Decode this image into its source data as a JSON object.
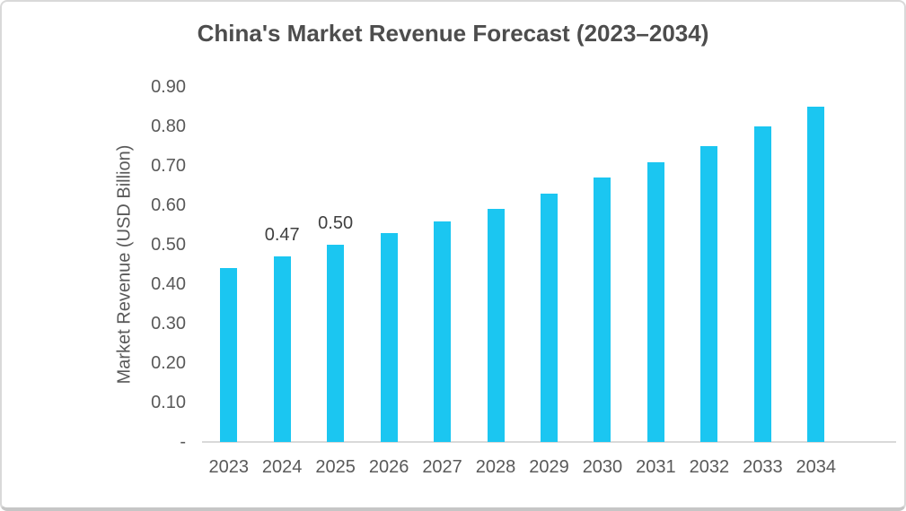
{
  "chart_data": {
    "type": "bar",
    "title": "China's Market Revenue Forecast (2023–2034)",
    "xlabel": "",
    "ylabel": "Market Revenue (USD Billion)",
    "categories": [
      "2023",
      "2024",
      "2025",
      "2026",
      "2027",
      "2028",
      "2029",
      "2030",
      "2031",
      "2032",
      "2033",
      "2034"
    ],
    "values": [
      0.44,
      0.47,
      0.5,
      0.53,
      0.56,
      0.59,
      0.63,
      0.67,
      0.71,
      0.75,
      0.8,
      0.85
    ],
    "data_labels": [
      "",
      "0.47",
      "0.50",
      "",
      "",
      "",
      "",
      "",
      "",
      "",
      "",
      ""
    ],
    "ylim": [
      0,
      0.9
    ],
    "y_ticks": [
      {
        "label": "0.90",
        "value": 0.9
      },
      {
        "label": "0.80",
        "value": 0.8
      },
      {
        "label": "0.70",
        "value": 0.7
      },
      {
        "label": "0.60",
        "value": 0.6
      },
      {
        "label": "0.50",
        "value": 0.5
      },
      {
        "label": "0.40",
        "value": 0.4
      },
      {
        "label": "0.30",
        "value": 0.3
      },
      {
        "label": "0.20",
        "value": 0.2
      },
      {
        "label": "0.10",
        "value": 0.1
      },
      {
        "label": "-",
        "value": 0
      }
    ],
    "grid": false,
    "legend": false,
    "colors": {
      "bar": "#1BC6F1",
      "axis_line": "#D9D9D9",
      "title_text": "#4D4D4D",
      "tick_text": "#595959",
      "data_label_text": "#404040"
    }
  }
}
